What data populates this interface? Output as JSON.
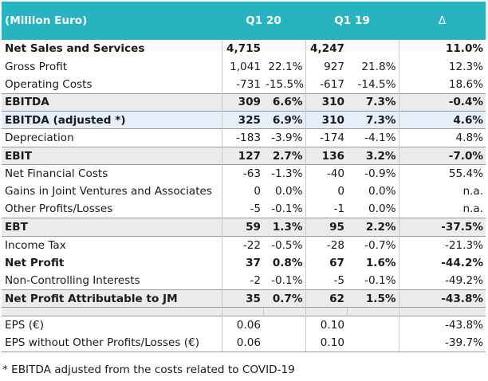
{
  "header": {
    "label": "(Million Euro)",
    "period1": "Q1 20",
    "period2": "Q1 19",
    "delta": "Δ"
  },
  "rows": [
    {
      "label": "Net Sales and Services",
      "v1": "4,715",
      "p1": "",
      "v2": "4,247",
      "p2": "",
      "d": "11.0%"
    },
    {
      "label": "Gross Profit",
      "v1": "1,041",
      "p1": "22.1%",
      "v2": "927",
      "p2": "21.8%",
      "d": "12.3%"
    },
    {
      "label": "Operating Costs",
      "v1": "-731",
      "p1": "-15.5%",
      "v2": "-617",
      "p2": "-14.5%",
      "d": "18.6%"
    },
    {
      "label": "EBITDA",
      "v1": "309",
      "p1": "6.6%",
      "v2": "310",
      "p2": "7.3%",
      "d": "-0.4%"
    },
    {
      "label": "EBITDA (adjusted *)",
      "v1": "325",
      "p1": "6.9%",
      "v2": "310",
      "p2": "7.3%",
      "d": "4.6%"
    },
    {
      "label": "Depreciation",
      "v1": "-183",
      "p1": "-3.9%",
      "v2": "-174",
      "p2": "-4.1%",
      "d": "4.8%"
    },
    {
      "label": "EBIT",
      "v1": "127",
      "p1": "2.7%",
      "v2": "136",
      "p2": "3.2%",
      "d": "-7.0%"
    },
    {
      "label": "Net Financial Costs",
      "v1": "-63",
      "p1": "-1.3%",
      "v2": "-40",
      "p2": "-0.9%",
      "d": "55.4%"
    },
    {
      "label": "Gains in Joint Ventures and Associates",
      "v1": "0",
      "p1": "0.0%",
      "v2": "0",
      "p2": "0.0%",
      "d": "n.a."
    },
    {
      "label": "Other Profits/Losses",
      "v1": "-5",
      "p1": "-0.1%",
      "v2": "-1",
      "p2": "0.0%",
      "d": "n.a."
    },
    {
      "label": "EBT",
      "v1": "59",
      "p1": "1.3%",
      "v2": "95",
      "p2": "2.2%",
      "d": "-37.5%"
    },
    {
      "label": "Income Tax",
      "v1": "-22",
      "p1": "-0.5%",
      "v2": "-28",
      "p2": "-0.7%",
      "d": "-21.3%"
    },
    {
      "label": "Net Profit",
      "v1": "37",
      "p1": "0.8%",
      "v2": "67",
      "p2": "1.6%",
      "d": "-44.2%"
    },
    {
      "label": "Non-Controlling Interests",
      "v1": "-2",
      "p1": "-0.1%",
      "v2": "-5",
      "p2": "-0.1%",
      "d": "-49.2%"
    },
    {
      "label": "Net Profit Attributable to JM",
      "v1": "35",
      "p1": "0.7%",
      "v2": "62",
      "p2": "1.5%",
      "d": "-43.8%"
    },
    {
      "label": "EPS (€)",
      "v1": "0.06",
      "p1": "",
      "v2": "0.10",
      "p2": "",
      "d": "-43.8%"
    },
    {
      "label": "EPS without Other Profits/Losses (€)",
      "v1": "0.06",
      "p1": "",
      "v2": "0.10",
      "p2": "",
      "d": "-39.7%"
    }
  ],
  "footnote": "* EBITDA adjusted from the costs related to COVID-19",
  "colors": {
    "header_bg": "#27b3bf",
    "header_text": "#ffffff",
    "highlight_grey": "#ebebeb",
    "highlight_blue": "#e6eefa"
  }
}
